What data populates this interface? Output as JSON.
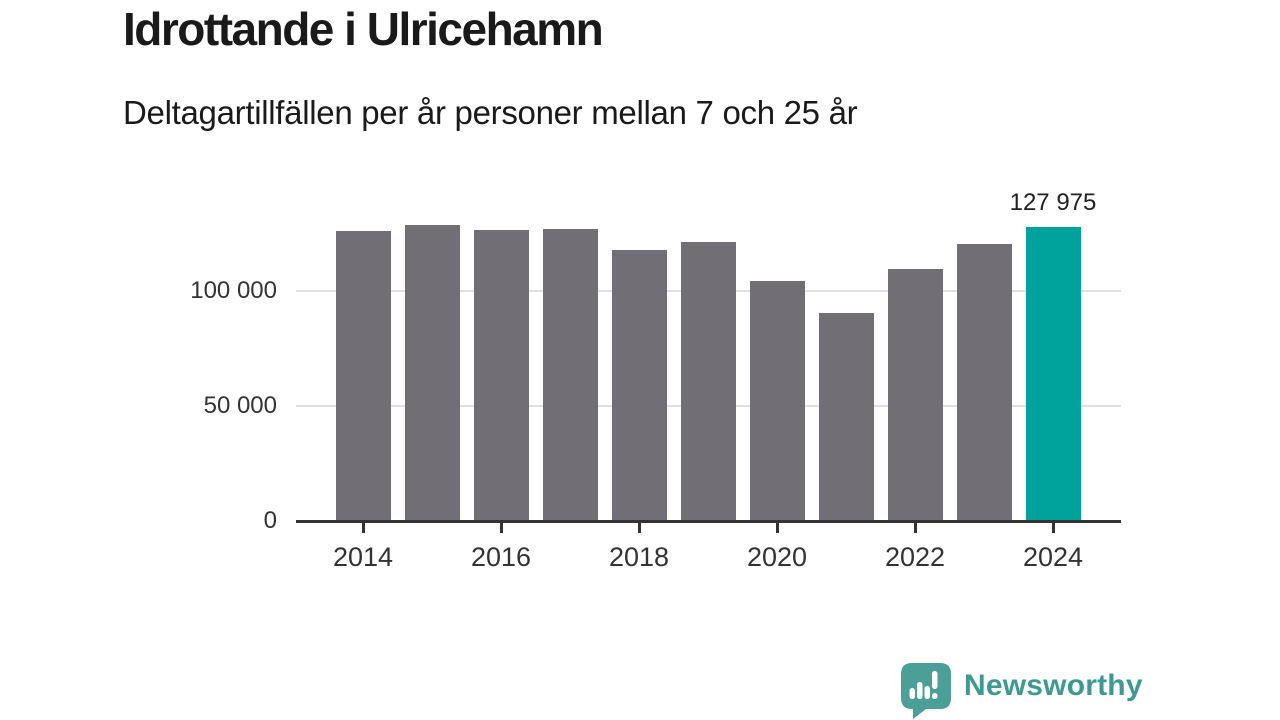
{
  "header": {
    "title": "Idrottande i Ulricehamn",
    "subtitle": "Deltagartillfällen per år personer mellan 7 och 25 år"
  },
  "chart_data": {
    "type": "bar",
    "title": "Idrottande i Ulricehamn",
    "subtitle": "Deltagartillfällen per år personer mellan 7 och 25 år",
    "categories": [
      "2014",
      "2015",
      "2016",
      "2017",
      "2018",
      "2019",
      "2020",
      "2021",
      "2022",
      "2023",
      "2024"
    ],
    "values": [
      126000,
      128500,
      126500,
      127000,
      118000,
      121500,
      104500,
      90500,
      109500,
      120500,
      127975
    ],
    "highlight_index": 10,
    "annotation": {
      "index": 10,
      "text": "127 975"
    },
    "x_tick_labels": [
      "2014",
      "2016",
      "2018",
      "2020",
      "2022",
      "2024"
    ],
    "y_ticks": [
      {
        "value": 0,
        "label": "0"
      },
      {
        "value": 50000,
        "label": "50 000"
      },
      {
        "value": 100000,
        "label": "100 000"
      }
    ],
    "ylim": [
      0,
      140000
    ],
    "xlabel": "",
    "ylabel": "",
    "legend": "none",
    "grid": "horizontal-light",
    "colors": {
      "bar": "#716e75",
      "highlight": "#00a39b",
      "grid": "#e0e0e0",
      "axis": "#333333",
      "tick_text": "#333333"
    }
  },
  "footer": {
    "brand": "Newsworthy",
    "logo_icon": "bar-chart-speech-bubble-icon",
    "colors": {
      "icon": "#4aa096",
      "text": "#3d9a90"
    }
  }
}
